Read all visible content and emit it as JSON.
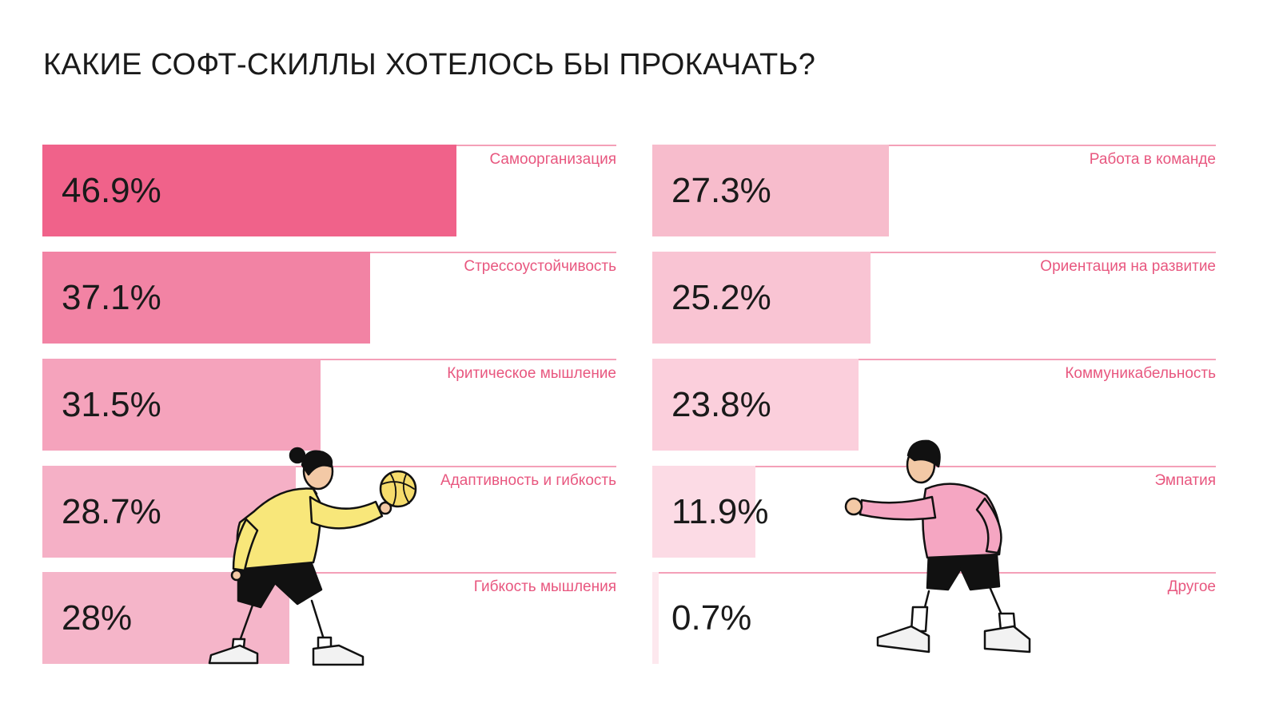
{
  "colors": {
    "bar_left": [
      "#f0628a",
      "#f283a4",
      "#f5a3bc",
      "#f5b0c6",
      "#f5b5c9"
    ],
    "bar_right": [
      "#f7bccc",
      "#f9c4d3",
      "#fbcfdc",
      "#fcdbe5",
      "#fde8ee"
    ],
    "line": "#f4a0b8",
    "label": "#e8577f",
    "figure_left_shirt": "#f8e77a",
    "figure_right_shirt": "#f5a6c2"
  },
  "chart_data": {
    "type": "bar",
    "title": "КАКИЕ СОФТ-СКИЛЛЫ ХОТЕЛОСЬ БЫ ПРОКАЧАТЬ?",
    "xlim": [
      0,
      65
    ],
    "columns": [
      {
        "items": [
          {
            "category": "Самоорганизация",
            "value": 46.9,
            "display": "46.9%"
          },
          {
            "category": "Стрессоустойчивость",
            "value": 37.1,
            "display": "37.1%"
          },
          {
            "category": "Критическое мышление",
            "value": 31.5,
            "display": "31.5%"
          },
          {
            "category": "Адаптивность и гибкость",
            "value": 28.7,
            "display": "28.7%"
          },
          {
            "category": "Гибкость мышления",
            "value": 28,
            "display": "28%"
          }
        ]
      },
      {
        "items": [
          {
            "category": "Работа в команде",
            "value": 27.3,
            "display": "27.3%"
          },
          {
            "category": "Ориентация на развитие",
            "value": 25.2,
            "display": "25.2%"
          },
          {
            "category": "Коммуникабельность",
            "value": 23.8,
            "display": "23.8%"
          },
          {
            "category": "Эмпатия",
            "value": 11.9,
            "display": "11.9%"
          },
          {
            "category": "Другое",
            "value": 0.7,
            "display": "0.7%"
          }
        ]
      }
    ]
  }
}
